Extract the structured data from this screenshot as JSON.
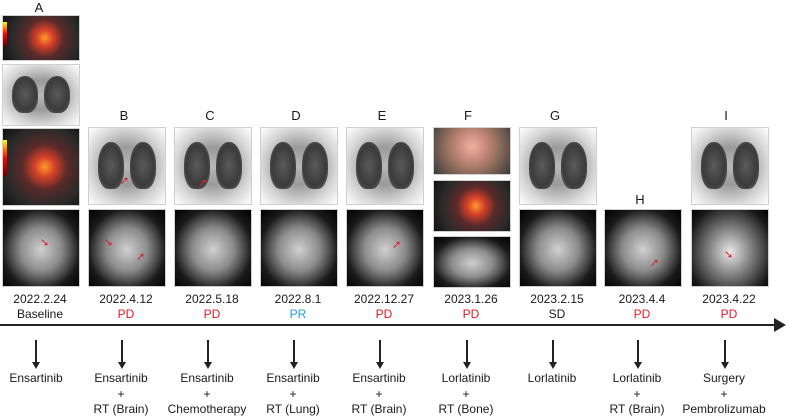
{
  "columns": [
    {
      "letter": "A",
      "date": "2022.2.24",
      "status": "Baseline",
      "status_color": "#1a1a1a",
      "treatment": [
        "Ensartinib"
      ]
    },
    {
      "letter": "B",
      "date": "2022.4.12",
      "status": "PD",
      "status_color": "#e31b23",
      "treatment": [
        "Ensartinib",
        "+",
        "RT (Brain)"
      ]
    },
    {
      "letter": "C",
      "date": "2022.5.18",
      "status": "PD",
      "status_color": "#e31b23",
      "treatment": [
        "Ensartinib",
        "+",
        "Chemotherapy"
      ]
    },
    {
      "letter": "D",
      "date": "2022.8.1",
      "status": "PR",
      "status_color": "#1ea0e0",
      "treatment": [
        "Ensartinib",
        "+",
        "RT (Lung)"
      ]
    },
    {
      "letter": "E",
      "date": "2022.12.27",
      "status": "PD",
      "status_color": "#e31b23",
      "treatment": [
        "Ensartinib",
        "+",
        "RT (Brain)"
      ]
    },
    {
      "letter": "F",
      "date": "2023.1.26",
      "status": "PD",
      "status_color": "#e31b23",
      "treatment": [
        "Lorlatinib",
        "+",
        "RT (Bone)"
      ]
    },
    {
      "letter": "G",
      "date": "2023.2.15",
      "status": "SD",
      "status_color": "#1a1a1a",
      "treatment": [
        "Lorlatinib"
      ]
    },
    {
      "letter": "H",
      "date": "2023.4.4",
      "status": "PD",
      "status_color": "#e31b23",
      "treatment": [
        "Lorlatinib",
        "+",
        "RT (Brain)"
      ]
    },
    {
      "letter": "I",
      "date": "2023.4.22",
      "status": "PD",
      "status_color": "#e31b23",
      "treatment": [
        "Surgery",
        "+",
        "Pembrolizumab"
      ]
    }
  ]
}
